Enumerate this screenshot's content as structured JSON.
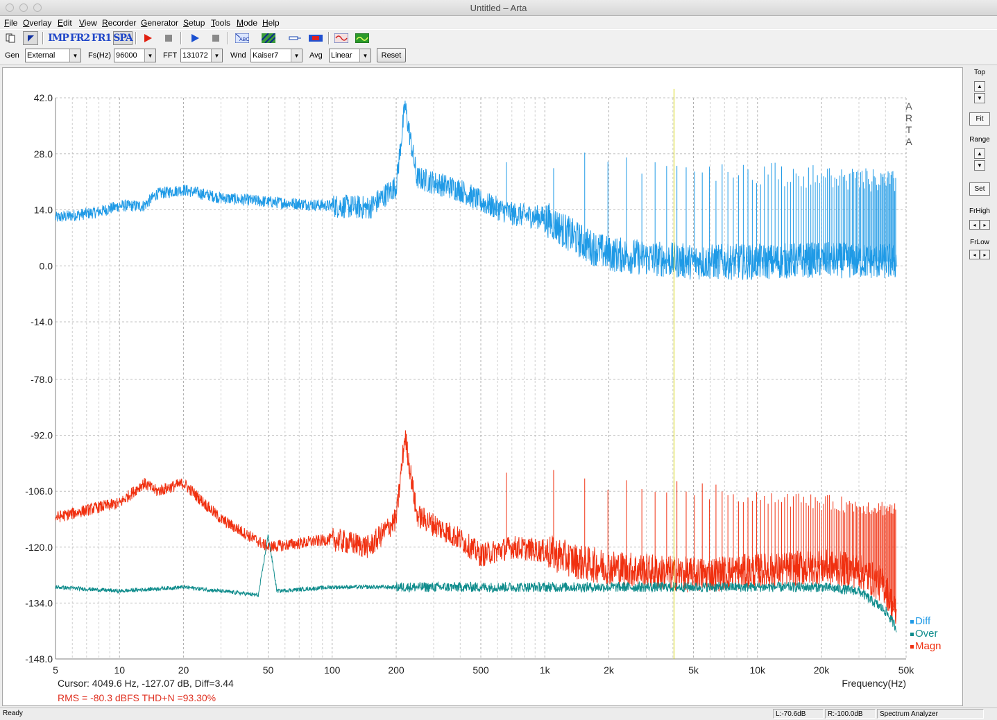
{
  "window": {
    "title": "Untitled – Arta"
  },
  "menu": [
    "File",
    "Overlay",
    "Edit",
    "View",
    "Recorder",
    "Generator",
    "Setup",
    "Tools",
    "Mode",
    "Help"
  ],
  "toolbar": {
    "buttons": [
      {
        "name": "copy-button",
        "icon": "copy-icon"
      },
      {
        "name": "measure-mode-button",
        "icon": "arrow-icon"
      },
      {
        "name": "imp-mode-button",
        "label": "IMP"
      },
      {
        "name": "fr2-mode-button",
        "label": "FR2"
      },
      {
        "name": "fr1-mode-button",
        "label": "FR1"
      },
      {
        "name": "spa-mode-button",
        "label": "SPA"
      },
      {
        "name": "generator-play-button",
        "icon": "play-red-icon"
      },
      {
        "name": "generator-stop-button",
        "icon": "stop-gray-icon"
      },
      {
        "name": "record-play-button",
        "icon": "play-blue-icon"
      },
      {
        "name": "record-stop-button",
        "icon": "stop-gray-icon"
      },
      {
        "name": "calibrate-button",
        "icon": "abc-icon"
      },
      {
        "name": "overlay-button",
        "icon": "hatch-icon"
      },
      {
        "name": "probe-button",
        "icon": "probe-icon"
      },
      {
        "name": "meter-button",
        "icon": "meter-icon"
      },
      {
        "name": "signal-generator-button",
        "icon": "sine-icon"
      },
      {
        "name": "scope-button",
        "icon": "scope-icon"
      }
    ]
  },
  "controls": {
    "gen_label": "Gen",
    "gen_value": "External",
    "fs_label": "Fs(Hz)",
    "fs_value": "96000",
    "fft_label": "FFT",
    "fft_value": "131072",
    "wnd_label": "Wnd",
    "wnd_value": "Kaiser7",
    "avg_label": "Avg",
    "avg_value": "Linear",
    "reset_label": "Reset"
  },
  "right_panel": {
    "top_label": "Top",
    "fit_label": "Fit",
    "range_label": "Range",
    "set_label": "Set",
    "frhigh_label": "FrHigh",
    "frlow_label": "FrLow"
  },
  "plot": {
    "watermark": "ARTA",
    "cursor_text": "Cursor:  4049.6 Hz, -127.07 dB,  Diff=3.44",
    "rms_text": "RMS =  -80.3 dBFS  THD+N =93.30%",
    "xlabel": "Frequency(Hz)",
    "cursor_freq": 4049.6,
    "colors": {
      "diff": "#1f9ae6",
      "over": "#0f8c8c",
      "magn": "#f03010",
      "cursor": "#d4d400"
    }
  },
  "chart_data": {
    "type": "line",
    "xscale": "log",
    "xlim": [
      5,
      50000
    ],
    "x_ticks": [
      5,
      10,
      20,
      50,
      100,
      200,
      500,
      1000,
      2000,
      5000,
      10000,
      20000,
      50000
    ],
    "x_tick_labels": [
      "5",
      "10",
      "20",
      "50",
      "100",
      "200",
      "500",
      "1k",
      "2k",
      "5k",
      "10k",
      "20k",
      "50k"
    ],
    "upper_axis": {
      "ylim": [
        -14,
        42
      ],
      "ticks": [
        42.0,
        28.0,
        14.0,
        0.0,
        -14.0
      ],
      "tick_labels": [
        "42.0",
        "28.0",
        "14.0",
        "0.0",
        "-14.0"
      ]
    },
    "lower_axis": {
      "ylim": [
        -148,
        -78
      ],
      "ticks": [
        -78.0,
        -92.0,
        -106.0,
        -120.0,
        -134.0,
        -148.0
      ],
      "tick_labels": [
        "-78.0",
        "-92.0",
        "-106.0",
        "-120.0",
        "-134.0",
        "-148.0"
      ]
    },
    "legend": [
      "Diff",
      "Over",
      "Magn"
    ],
    "legend_position": "bottom-right",
    "grid": true,
    "series": [
      {
        "name": "Diff",
        "axis": "upper",
        "x": [
          5,
          8,
          10,
          13,
          15,
          20,
          30,
          50,
          100,
          150,
          200,
          220,
          250,
          400,
          500,
          700,
          1000,
          1300,
          1600,
          2000,
          3000,
          5000,
          10000,
          20000,
          45000
        ],
        "y": [
          12,
          13.5,
          15,
          15,
          18,
          19,
          17,
          16,
          15,
          14.5,
          20,
          40,
          22,
          19,
          16,
          13,
          12,
          8,
          5,
          3,
          2,
          1,
          1,
          1.5,
          1
        ]
      },
      {
        "name": "Magn",
        "axis": "lower",
        "x": [
          5,
          8,
          10,
          13,
          15,
          20,
          30,
          50,
          100,
          150,
          200,
          220,
          250,
          400,
          500,
          700,
          1000,
          1500,
          2000,
          3000,
          5000,
          10000,
          20000,
          30000,
          40000,
          50000
        ],
        "y": [
          -112.6,
          -110,
          -109,
          -104,
          -106,
          -104,
          -113,
          -120,
          -118,
          -120,
          -113,
          -92,
          -112,
          -118,
          -122,
          -120,
          -121,
          -124,
          -125,
          -126,
          -127,
          -126,
          -125,
          -126,
          -130,
          -144
        ]
      },
      {
        "name": "Over",
        "axis": "lower",
        "x": [
          5,
          10,
          20,
          30,
          45,
          50,
          55,
          100,
          200,
          500,
          1000,
          2000,
          5000,
          10000,
          20000,
          30000,
          40000,
          50000
        ],
        "y": [
          -130,
          -131,
          -130,
          -131,
          -132,
          -117,
          -131,
          -130,
          -130,
          -130,
          -130,
          -130,
          -130,
          -130,
          -130,
          -131,
          -136,
          -144
        ]
      }
    ]
  }
}
